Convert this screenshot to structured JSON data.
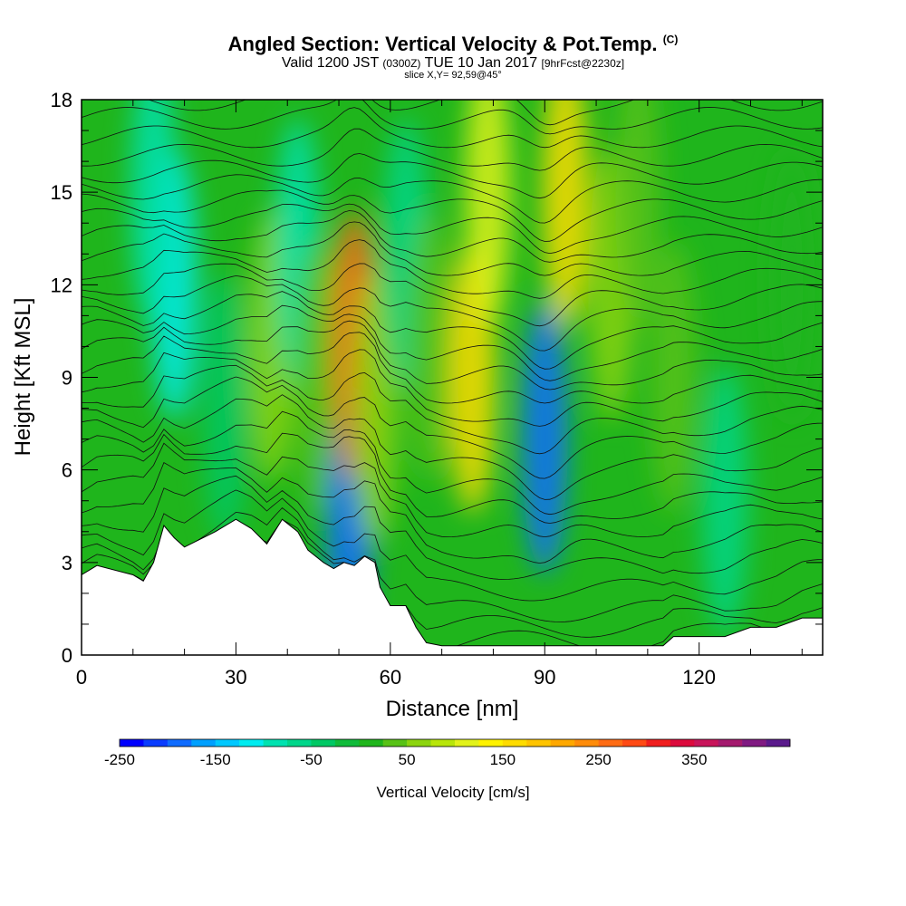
{
  "header": {
    "title": "Angled Section: Vertical Velocity & Pot.Temp.",
    "title_unit": "(C)",
    "valid_prefix": "Valid 1200 JST",
    "valid_utc": "(0300Z)",
    "valid_date": "TUE 10 Jan 2017",
    "forecast": "[9hrFcst@2230z]",
    "slice": "slice X,Y= 92,59@45°"
  },
  "chart_data": {
    "type": "heatmap",
    "xlabel": "Distance [nm]",
    "ylabel": "Height [Kft MSL]",
    "xlim": [
      0,
      144
    ],
    "ylim": [
      0,
      18
    ],
    "x_ticks": [
      0,
      30,
      60,
      90,
      120
    ],
    "y_ticks": [
      0,
      3,
      6,
      9,
      12,
      15,
      18
    ],
    "x_minor_step": 10,
    "y_minor_step": 1,
    "colorbar": {
      "label": "Vertical Velocity [cm/s]",
      "range": [
        -250,
        450
      ],
      "bin": 25,
      "tick_values": [
        -250,
        -150,
        -50,
        50,
        150,
        250,
        350
      ],
      "tick_labels": [
        "-250",
        "-150",
        "-50",
        "50",
        "150",
        "250",
        "350"
      ],
      "colors": [
        "#0000ff",
        "#0a3cff",
        "#0f6cff",
        "#00a0ff",
        "#00c8ff",
        "#00ecf0",
        "#00e2b0",
        "#00d68a",
        "#00c864",
        "#10bb3a",
        "#1fb51c",
        "#58c216",
        "#8cd40e",
        "#b8e60a",
        "#e2f21a",
        "#fff200",
        "#ffdc00",
        "#ffc400",
        "#ffa800",
        "#ff8c0a",
        "#ff6c14",
        "#ff4a14",
        "#f01e1e",
        "#dc0a3c",
        "#c8145a",
        "#a41a6e",
        "#801a82",
        "#5a1a8c"
      ]
    },
    "velocity_features_cm_s": [
      {
        "x": 18,
        "y": 12,
        "w": -110
      },
      {
        "x": 14,
        "y": 15,
        "w": -90
      },
      {
        "x": 28,
        "y": 8,
        "w": -40
      },
      {
        "x": 37,
        "y": 10,
        "w": 60
      },
      {
        "x": 42,
        "y": 13,
        "w": -80
      },
      {
        "x": 46,
        "y": 9,
        "w": 30
      },
      {
        "x": 52,
        "y": 4,
        "w": -180
      },
      {
        "x": 53,
        "y": 10,
        "w": 250
      },
      {
        "x": 57,
        "y": 8,
        "w": 60
      },
      {
        "x": 63,
        "y": 13,
        "w": -60
      },
      {
        "x": 68,
        "y": 10,
        "w": 40
      },
      {
        "x": 76,
        "y": 9,
        "w": 160
      },
      {
        "x": 79,
        "y": 15,
        "w": 110
      },
      {
        "x": 90,
        "y": 7,
        "w": -190
      },
      {
        "x": 94,
        "y": 15,
        "w": 160
      },
      {
        "x": 103,
        "y": 12,
        "w": 70
      },
      {
        "x": 108,
        "y": 15,
        "w": 40
      },
      {
        "x": 115,
        "y": 9,
        "w": 30
      },
      {
        "x": 125,
        "y": 5,
        "w": -60
      },
      {
        "x": 138,
        "y": 12,
        "w": 20
      }
    ],
    "terrain_kft": {
      "x": [
        0,
        3,
        10,
        12,
        14,
        16,
        18,
        20,
        26,
        30,
        33,
        36,
        39,
        42,
        44,
        47,
        49,
        51,
        53,
        55,
        57,
        58,
        60,
        63,
        65,
        67,
        70,
        75,
        80,
        85,
        90,
        95,
        100,
        105,
        110,
        113,
        115,
        120,
        125,
        130,
        135,
        140,
        144
      ],
      "h": [
        2.6,
        2.9,
        2.6,
        2.4,
        3.0,
        4.2,
        3.8,
        3.5,
        4.0,
        4.4,
        4.1,
        3.6,
        4.4,
        4.0,
        3.4,
        3.0,
        2.8,
        3.0,
        2.9,
        3.2,
        3.0,
        2.2,
        1.6,
        1.6,
        0.9,
        0.4,
        0.3,
        0.3,
        0.3,
        0.3,
        0.3,
        0.3,
        0.3,
        0.3,
        0.3,
        0.3,
        0.6,
        0.6,
        0.6,
        0.9,
        0.9,
        1.2,
        1.2
      ]
    },
    "contour_base_kft": [
      0.2,
      0.7,
      1.2,
      1.9,
      2.6,
      3.3,
      4.0,
      4.6,
      5.2,
      5.9,
      6.6,
      7.2,
      7.8,
      8.4,
      9.0,
      9.6,
      10.2,
      10.8,
      11.4,
      12.0,
      12.6,
      13.2,
      13.8,
      14.4,
      15.0,
      15.6,
      16.2,
      16.8,
      17.4,
      18.0
    ]
  }
}
